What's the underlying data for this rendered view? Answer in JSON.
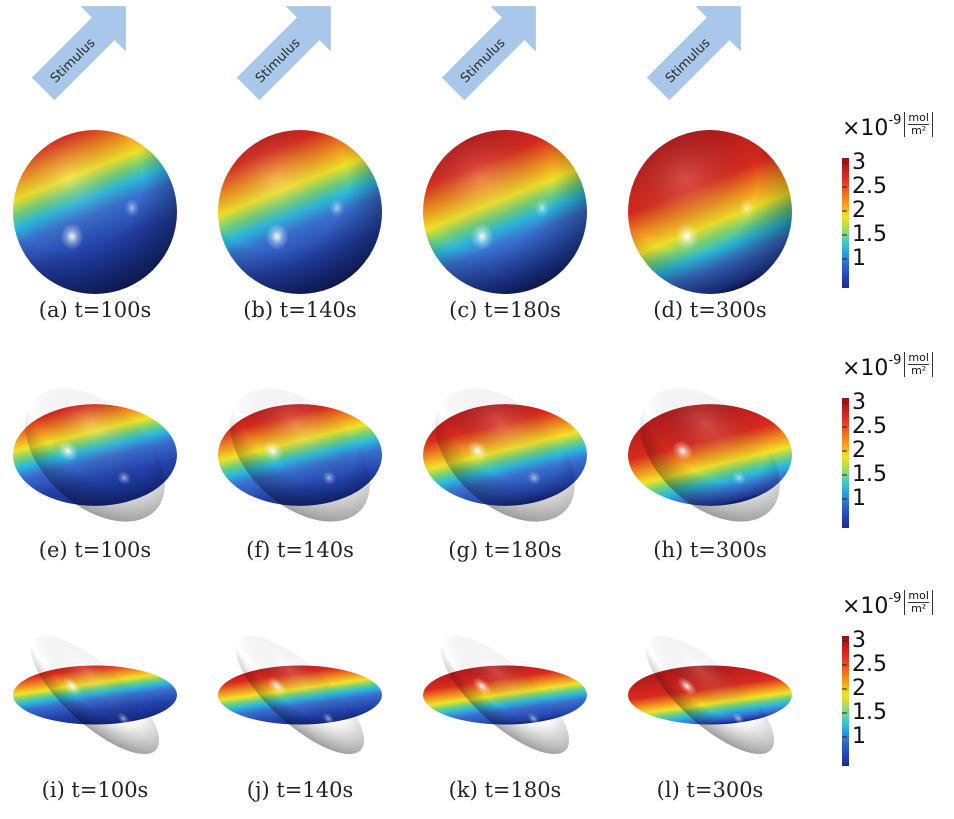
{
  "stimulus_label": "Stimulus",
  "panels": [
    {
      "caption": "(a) t=100s",
      "aspect": 1.0,
      "angle": 0
    },
    {
      "caption": "(b) t=140s",
      "aspect": 1.0,
      "angle": 0
    },
    {
      "caption": "(c) t=180s",
      "aspect": 1.0,
      "angle": 0
    },
    {
      "caption": "(d) t=300s",
      "aspect": 1.0,
      "angle": 0
    },
    {
      "caption": "(e) t=100s",
      "aspect": 0.62,
      "angle": 42
    },
    {
      "caption": "(f) t=140s",
      "aspect": 0.62,
      "angle": 42
    },
    {
      "caption": "(g) t=180s",
      "aspect": 0.62,
      "angle": 42
    },
    {
      "caption": "(h) t=300s",
      "aspect": 0.62,
      "angle": 42
    },
    {
      "caption": "(i) t=100s",
      "aspect": 0.36,
      "angle": 42
    },
    {
      "caption": "(j) t=140s",
      "aspect": 0.36,
      "angle": 42
    },
    {
      "caption": "(k) t=180s",
      "aspect": 0.36,
      "angle": 42
    },
    {
      "caption": "(l) t=300s",
      "aspect": 0.36,
      "angle": 42
    }
  ],
  "colorbar": {
    "multiplier": "×10",
    "exponent": "-9",
    "unit_numerator": "mol",
    "unit_denominator": "m²",
    "ticks": [
      "3",
      "2.5",
      "2",
      "1.5",
      "1"
    ]
  },
  "colors": {
    "arrow": "#a9c7e8",
    "high": "#b0151a",
    "mid": "#f5e020",
    "low": "#1d3ba8"
  }
}
